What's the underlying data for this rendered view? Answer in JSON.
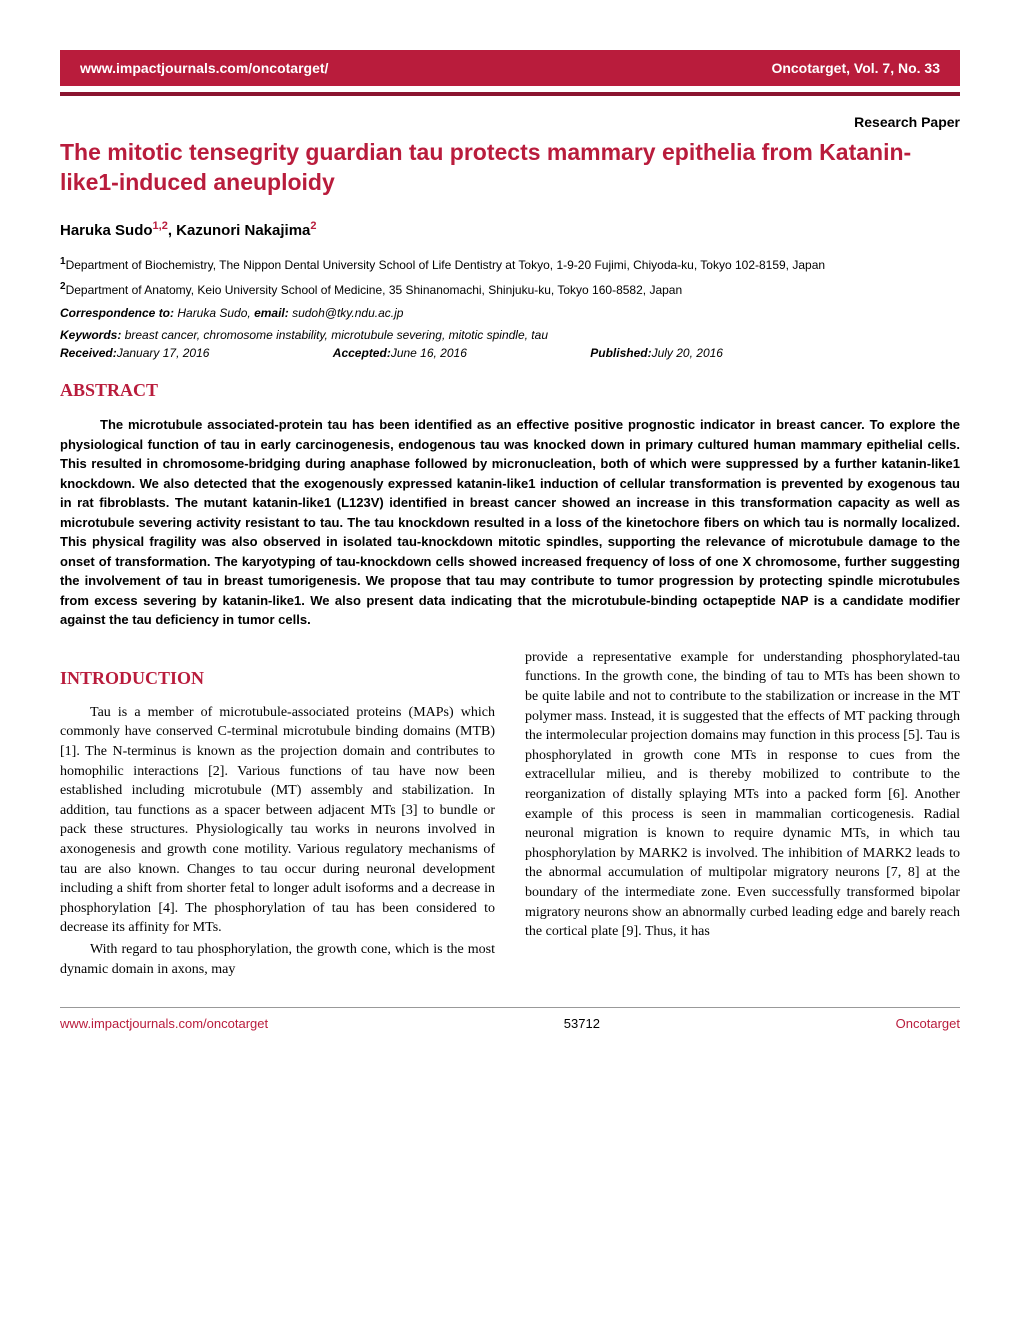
{
  "header": {
    "url": "www.impactjournals.com/oncotarget/",
    "journal_info": "Oncotarget, Vol. 7, No. 33"
  },
  "research_paper_label": "Research Paper",
  "title": "The mitotic tensegrity guardian tau protects mammary epithelia from Katanin-like1-induced aneuploidy",
  "authors": {
    "name1": "Haruka Sudo",
    "sup1": "1,2",
    "name2": ", Kazunori Nakajima",
    "sup2": "2"
  },
  "affiliations": {
    "aff1_sup": "1",
    "aff1": "Department of Biochemistry, The Nippon Dental University School of Life Dentistry at Tokyo, 1-9-20 Fujimi, Chiyoda-ku, Tokyo 102-8159, Japan",
    "aff2_sup": "2",
    "aff2": "Department of Anatomy, Keio University School of Medicine, 35 Shinanomachi, Shinjuku-ku, Tokyo 160-8582, Japan"
  },
  "correspondence": {
    "label": "Correspondence to:",
    "text": " Haruka Sudo, ",
    "email_label": "email:",
    "email": " sudoh@tky.ndu.ac.jp"
  },
  "keywords": {
    "label": "Keywords:",
    "text": " breast cancer, chromosome instability, microtubule severing, mitotic spindle, tau"
  },
  "dates": {
    "received_label": "Received:",
    "received": " January 17, 2016",
    "accepted_label": "Accepted:",
    "accepted": " June 16, 2016",
    "published_label": "Published:",
    "published": " July 20, 2016"
  },
  "abstract_heading": "ABSTRACT",
  "abstract_text": "The microtubule associated-protein tau has been identified as an effective positive prognostic indicator in breast cancer. To explore the physiological function of tau in early carcinogenesis, endogenous tau was knocked down in primary cultured human mammary epithelial cells. This resulted in chromosome-bridging during anaphase followed by micronucleation, both of which were suppressed by a further katanin-like1 knockdown. We also detected that the exogenously expressed katanin-like1 induction of cellular transformation is prevented by exogenous tau in rat fibroblasts. The mutant katanin-like1 (L123V) identified in breast cancer showed an increase in this transformation capacity as well as microtubule severing activity resistant to tau. The tau knockdown resulted in a loss of the kinetochore fibers on which tau is normally localized. This physical fragility was also observed in isolated tau-knockdown mitotic spindles, supporting the relevance of microtubule damage to the onset of transformation. The karyotyping of tau-knockdown cells showed increased frequency of loss of one X chromosome, further suggesting the involvement of tau in breast tumorigenesis. We propose that tau may contribute to tumor progression by protecting spindle microtubules from excess severing by katanin-like1. We also present data indicating that the microtubule-binding octapeptide NAP is a candidate modifier against the tau deficiency in tumor cells.",
  "introduction_heading": "INTRODUCTION",
  "introduction": {
    "p1": "Tau is a member of microtubule-associated proteins (MAPs) which commonly have conserved C-terminal microtubule binding domains (MTB) [1]. The N-terminus is known as the projection domain and contributes to homophilic interactions [2]. Various functions of tau have now been established including microtubule (MT) assembly and stabilization. In addition, tau functions as a spacer between adjacent MTs [3] to bundle or pack these structures. Physiologically tau works in neurons involved in axonogenesis and growth cone motility. Various regulatory mechanisms of tau are also known. Changes to tau occur during neuronal development including a shift from shorter fetal to longer adult isoforms and a decrease in phosphorylation [4]. The phosphorylation of tau has been considered to decrease its affinity for MTs.",
    "p2": "With regard to tau phosphorylation, the growth cone, which is the most dynamic domain in axons, may",
    "p3": "provide a representative example for understanding phosphorylated-tau functions. In the growth cone, the binding of tau to MTs has been shown to be quite labile and not to contribute to the stabilization or increase in the MT polymer mass. Instead, it is suggested that the effects of MT packing through the intermolecular projection domains may function in this process [5]. Tau is phosphorylated in growth cone MTs in response to cues from the extracellular milieu, and is thereby mobilized to contribute to the reorganization of distally splaying MTs into a packed form [6]. Another example of this process is seen in mammalian corticogenesis. Radial neuronal migration is known to require dynamic MTs, in which tau phosphorylation by MARK2 is involved. The inhibition of MARK2 leads to the abnormal accumulation of multipolar migratory neurons [7, 8] at the boundary of the intermediate zone. Even successfully transformed bipolar migratory neurons show an abnormally curbed leading edge and barely reach the cortical plate [9]. Thus, it has"
  },
  "footer": {
    "url": "www.impactjournals.com/oncotarget",
    "page": "53712",
    "journal": "Oncotarget"
  },
  "colors": {
    "primary_red": "#b91c3c",
    "dark_red": "#8a1530",
    "text": "#000000",
    "background": "#ffffff"
  }
}
